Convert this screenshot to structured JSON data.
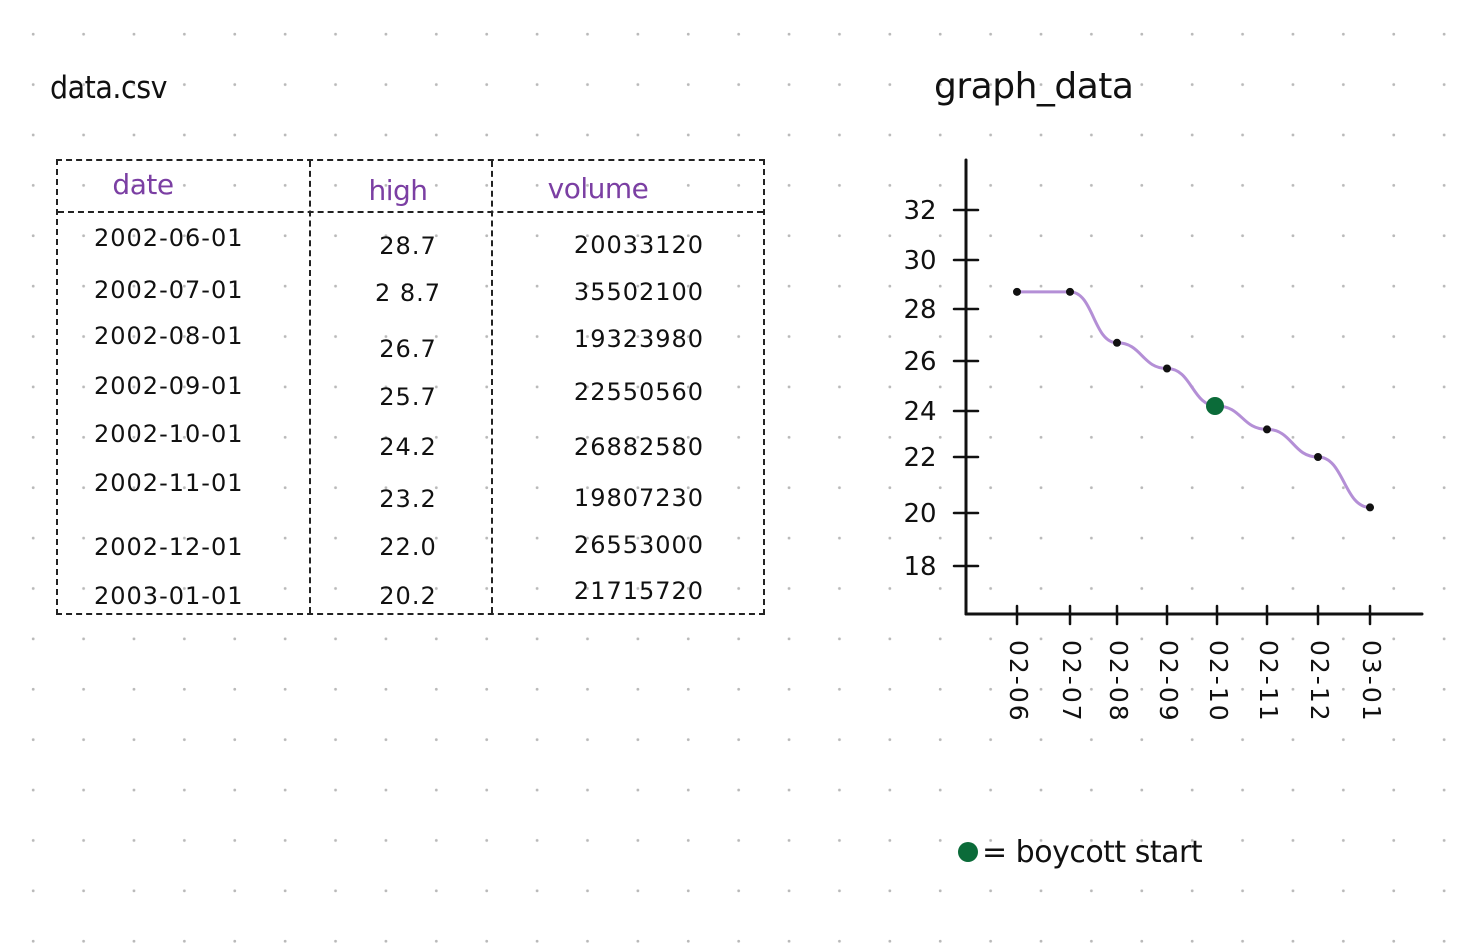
{
  "csv_title": "data.csv",
  "graph_title": "graph_data",
  "table": {
    "headers": [
      "date",
      "high",
      "volume"
    ],
    "rows": [
      [
        "2002-06-01",
        "28.7",
        "20033120"
      ],
      [
        "2002-07-01",
        "2 8.7",
        "35502100"
      ],
      [
        "2002-08-01",
        "26.7",
        "19323980"
      ],
      [
        "2002-09-01",
        "25.7",
        "22550560"
      ],
      [
        "2002-10-01",
        "24.2",
        "26882580"
      ],
      [
        "2002-11-01",
        "23.2",
        "19807230"
      ],
      [
        "2002-12-01",
        "22.0",
        "26553000"
      ],
      [
        "2003-01-01",
        "20.2",
        "21715720"
      ]
    ]
  },
  "legend": {
    "label": "= boycott start"
  },
  "colors": {
    "header_text": "#7b3fa3",
    "line": "#b48fd6",
    "point": "#111111",
    "event_marker": "#0b6b39"
  },
  "chart_data": {
    "type": "line",
    "title": "graph_data",
    "xlabel": "",
    "ylabel": "",
    "categories": [
      "02-06",
      "02-07",
      "02-08",
      "02-09",
      "02-10",
      "02-11",
      "02-12",
      "03-01"
    ],
    "y_ticks": [
      18,
      20,
      22,
      24,
      26,
      28,
      30,
      32
    ],
    "series": [
      {
        "values": [
          28.7,
          28.7,
          26.7,
          25.7,
          24.2,
          23.2,
          22.0,
          20.2
        ]
      }
    ],
    "event": {
      "category": "02-10",
      "value": 24.2,
      "label": "boycott start"
    },
    "grid": false,
    "legend_position": "bottom-left"
  }
}
